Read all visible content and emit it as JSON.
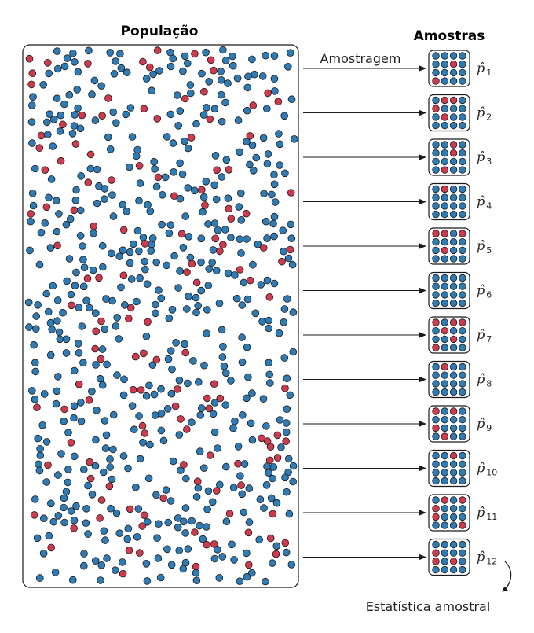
{
  "population_title": "População",
  "samples_title": "Amostras",
  "arrow_label": "Amostragem",
  "statistic_label": "Estatística amostral",
  "colors": {
    "blue": "#2f7bb5",
    "red": "#d03a4e",
    "outline": "#1a1a1a"
  },
  "population": {
    "blue_approx": 560,
    "red_approx": 140
  },
  "samples": [
    {
      "symbol": "p̂",
      "subscript": "1",
      "dots": [
        "blue",
        "blue",
        "blue",
        "blue",
        "blue",
        "blue",
        "red",
        "blue",
        "blue",
        "blue",
        "blue",
        "blue",
        "red",
        "blue",
        "blue",
        "blue"
      ]
    },
    {
      "symbol": "p̂",
      "subscript": "2",
      "dots": [
        "blue",
        "red",
        "red",
        "blue",
        "red",
        "blue",
        "blue",
        "blue",
        "blue",
        "red",
        "blue",
        "blue",
        "blue",
        "blue",
        "blue",
        "blue"
      ]
    },
    {
      "symbol": "p̂",
      "subscript": "3",
      "dots": [
        "blue",
        "blue",
        "red",
        "blue",
        "blue",
        "blue",
        "red",
        "blue",
        "blue",
        "blue",
        "blue",
        "blue",
        "blue",
        "red",
        "blue",
        "blue"
      ]
    },
    {
      "symbol": "p̂",
      "subscript": "4",
      "dots": [
        "blue",
        "red",
        "blue",
        "blue",
        "blue",
        "blue",
        "blue",
        "blue",
        "blue",
        "blue",
        "blue",
        "blue",
        "blue",
        "blue",
        "blue",
        "blue"
      ]
    },
    {
      "symbol": "p̂",
      "subscript": "5",
      "dots": [
        "red",
        "red",
        "blue",
        "red",
        "blue",
        "blue",
        "blue",
        "blue",
        "blue",
        "red",
        "blue",
        "blue",
        "blue",
        "blue",
        "blue",
        "blue"
      ]
    },
    {
      "symbol": "p̂",
      "subscript": "6",
      "dots": [
        "blue",
        "blue",
        "blue",
        "blue",
        "blue",
        "blue",
        "blue",
        "blue",
        "blue",
        "blue",
        "blue",
        "blue",
        "blue",
        "blue",
        "blue",
        "blue"
      ]
    },
    {
      "symbol": "p̂",
      "subscript": "7",
      "dots": [
        "red",
        "blue",
        "red",
        "red",
        "blue",
        "red",
        "blue",
        "blue",
        "blue",
        "blue",
        "red",
        "blue",
        "red",
        "blue",
        "blue",
        "blue"
      ]
    },
    {
      "symbol": "p̂",
      "subscript": "8",
      "dots": [
        "blue",
        "red",
        "blue",
        "blue",
        "blue",
        "blue",
        "blue",
        "blue",
        "blue",
        "blue",
        "blue",
        "blue",
        "blue",
        "blue",
        "blue",
        "blue"
      ]
    },
    {
      "symbol": "p̂",
      "subscript": "9",
      "dots": [
        "red",
        "blue",
        "red",
        "blue",
        "blue",
        "blue",
        "blue",
        "blue",
        "red",
        "blue",
        "blue",
        "blue",
        "blue",
        "red",
        "blue",
        "blue"
      ]
    },
    {
      "symbol": "p̂",
      "subscript": "10",
      "dots": [
        "blue",
        "blue",
        "red",
        "blue",
        "blue",
        "blue",
        "blue",
        "blue",
        "blue",
        "blue",
        "blue",
        "blue",
        "blue",
        "blue",
        "blue",
        "blue"
      ]
    },
    {
      "symbol": "p̂",
      "subscript": "11",
      "dots": [
        "blue",
        "red",
        "blue",
        "red",
        "red",
        "blue",
        "blue",
        "blue",
        "red",
        "blue",
        "blue",
        "blue",
        "blue",
        "blue",
        "blue",
        "red"
      ]
    },
    {
      "symbol": "p̂",
      "subscript": "12",
      "dots": [
        "blue",
        "blue",
        "blue",
        "blue",
        "red",
        "blue",
        "blue",
        "blue",
        "red",
        "blue",
        "red",
        "blue",
        "blue",
        "blue",
        "blue",
        "blue"
      ]
    }
  ]
}
